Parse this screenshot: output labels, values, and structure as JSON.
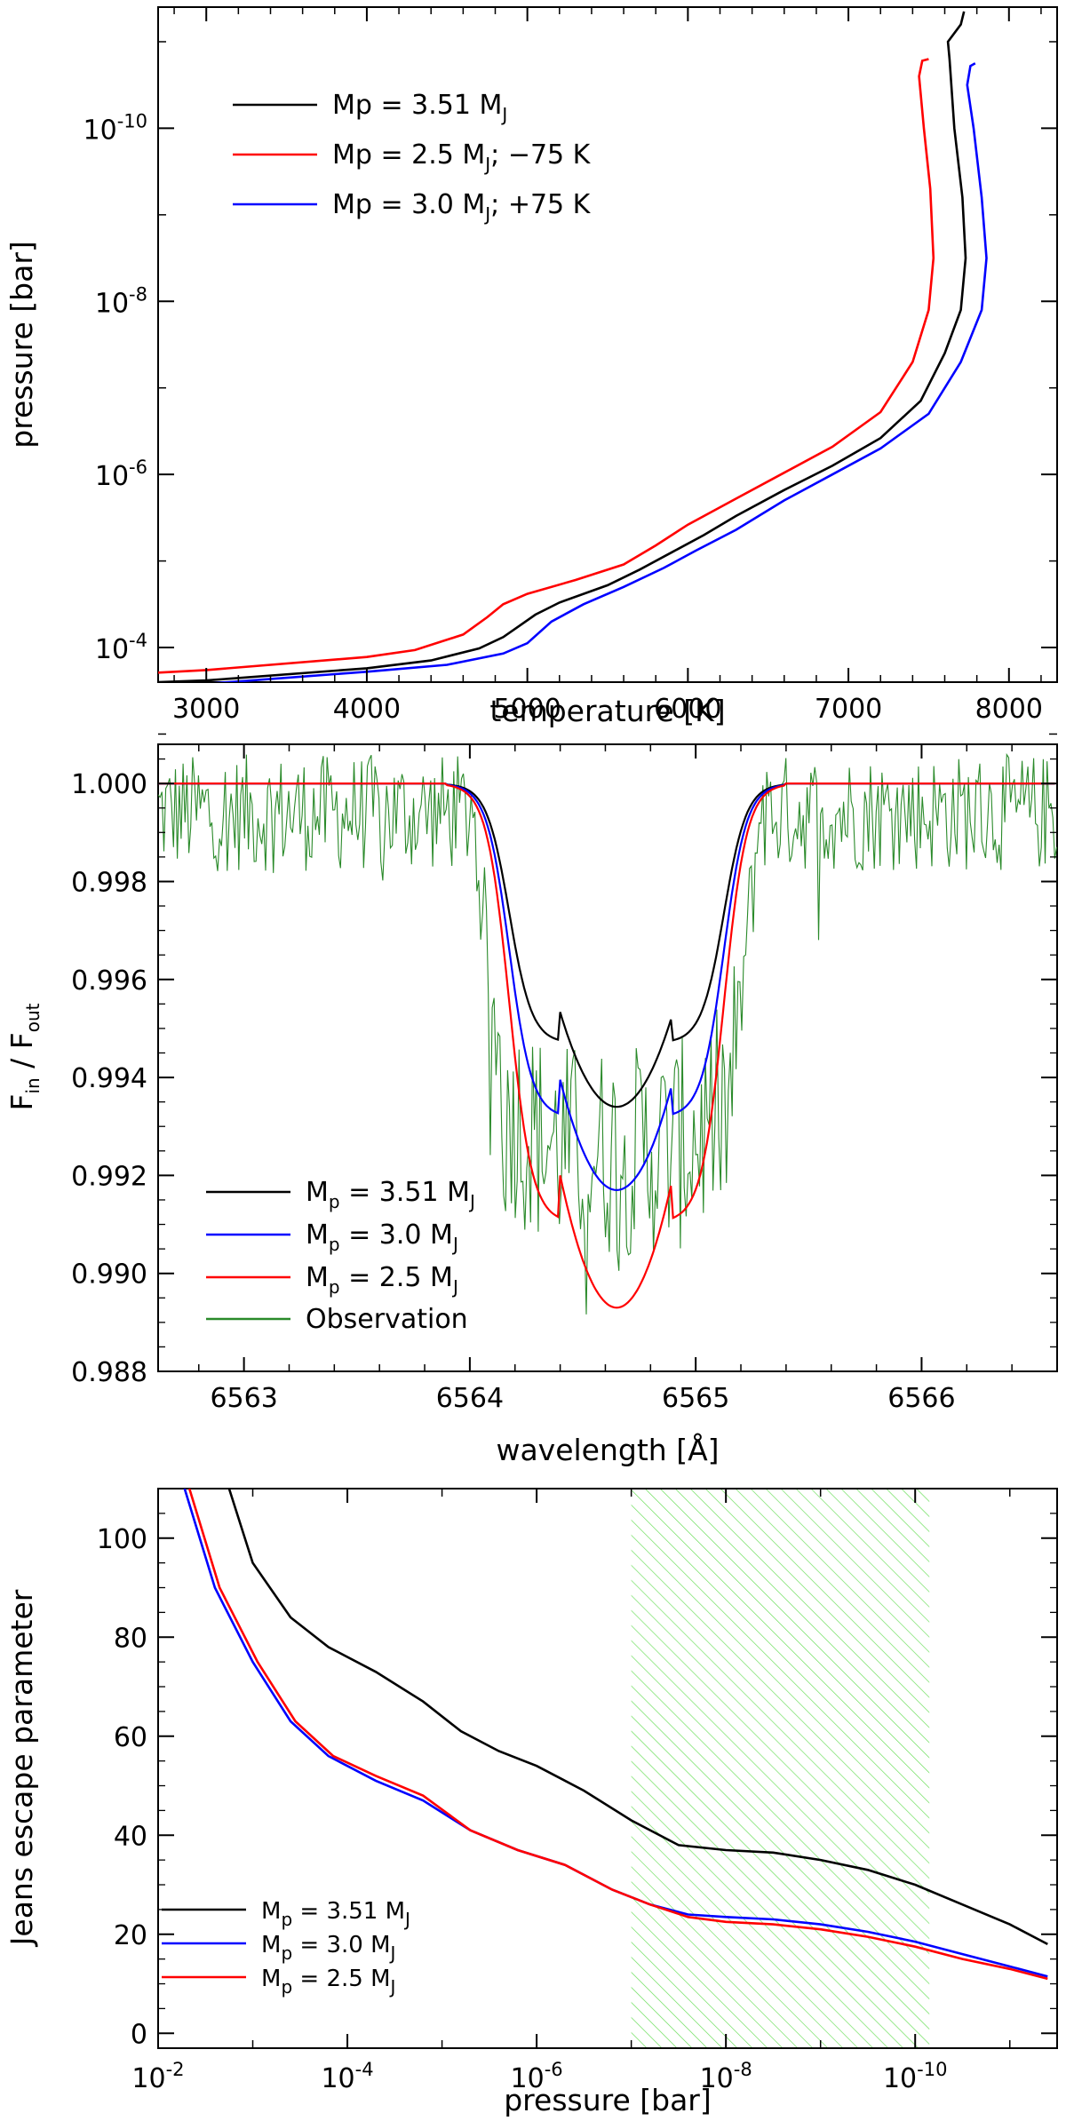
{
  "chart_data": [
    {
      "type": "line",
      "xlabel": "temperature [K]",
      "ylabel": "pressure [bar]",
      "xlim": [
        2700,
        8300
      ],
      "ylim_log10": [
        -3.6,
        -11.4
      ],
      "y_scale": "log",
      "y_inverted": true,
      "x_ticks": [
        3000,
        4000,
        5000,
        6000,
        7000,
        8000
      ],
      "x_tick_labels": [
        "3000",
        "4000",
        "5000",
        "6000",
        "7000",
        "8000"
      ],
      "y_ticks_log10": [
        -4,
        -6,
        -8,
        -10
      ],
      "y_tick_labels": [
        {
          "base": "10",
          "exp": "-4"
        },
        {
          "base": "10",
          "exp": "-6"
        },
        {
          "base": "10",
          "exp": "-8"
        },
        {
          "base": "10",
          "exp": "-10"
        }
      ],
      "legend_position": "top-left",
      "series": [
        {
          "label": "Mp = 3.51 M",
          "sub": "J",
          "label_suffix": "",
          "color": "#000000",
          "points": [
            [
              2700,
              -3.6
            ],
            [
              3000,
              -3.62
            ],
            [
              4000,
              -3.76
            ],
            [
              4400,
              -3.85
            ],
            [
              4700,
              -3.99
            ],
            [
              4850,
              -4.12
            ],
            [
              4950,
              -4.25
            ],
            [
              5050,
              -4.38
            ],
            [
              5200,
              -4.52
            ],
            [
              5500,
              -4.72
            ],
            [
              5700,
              -4.9
            ],
            [
              5900,
              -5.1
            ],
            [
              6100,
              -5.3
            ],
            [
              6300,
              -5.52
            ],
            [
              6600,
              -5.82
            ],
            [
              6900,
              -6.1
            ],
            [
              7200,
              -6.42
            ],
            [
              7450,
              -6.85
            ],
            [
              7600,
              -7.4
            ],
            [
              7700,
              -7.9
            ],
            [
              7730,
              -8.5
            ],
            [
              7710,
              -9.2
            ],
            [
              7660,
              -10.0
            ],
            [
              7630,
              -10.8
            ],
            [
              7620,
              -11.0
            ],
            [
              7700,
              -11.2
            ],
            [
              7720,
              -11.35
            ]
          ]
        },
        {
          "label": "Mp = 2.5 M",
          "sub": "J",
          "label_suffix": "; −75 K",
          "color": "#ff0000",
          "points": [
            [
              2700,
              -3.71
            ],
            [
              3000,
              -3.74
            ],
            [
              4000,
              -3.89
            ],
            [
              4300,
              -3.97
            ],
            [
              4600,
              -4.15
            ],
            [
              4750,
              -4.35
            ],
            [
              4850,
              -4.5
            ],
            [
              5000,
              -4.62
            ],
            [
              5300,
              -4.78
            ],
            [
              5600,
              -4.96
            ],
            [
              5800,
              -5.18
            ],
            [
              6000,
              -5.42
            ],
            [
              6300,
              -5.72
            ],
            [
              6600,
              -6.02
            ],
            [
              6900,
              -6.32
            ],
            [
              7200,
              -6.72
            ],
            [
              7400,
              -7.3
            ],
            [
              7500,
              -7.9
            ],
            [
              7530,
              -8.5
            ],
            [
              7510,
              -9.3
            ],
            [
              7470,
              -10.0
            ],
            [
              7440,
              -10.6
            ],
            [
              7460,
              -10.78
            ],
            [
              7500,
              -10.8
            ]
          ]
        },
        {
          "label": "Mp = 3.0 M",
          "sub": "J",
          "label_suffix": "; +75 K",
          "color": "#0000ff",
          "points": [
            [
              2700,
              -3.56
            ],
            [
              3000,
              -3.58
            ],
            [
              4000,
              -3.72
            ],
            [
              4500,
              -3.8
            ],
            [
              4850,
              -3.93
            ],
            [
              5000,
              -4.05
            ],
            [
              5150,
              -4.3
            ],
            [
              5350,
              -4.5
            ],
            [
              5600,
              -4.7
            ],
            [
              5850,
              -4.92
            ],
            [
              6050,
              -5.12
            ],
            [
              6300,
              -5.36
            ],
            [
              6600,
              -5.7
            ],
            [
              6900,
              -6.0
            ],
            [
              7200,
              -6.3
            ],
            [
              7500,
              -6.7
            ],
            [
              7700,
              -7.3
            ],
            [
              7830,
              -7.9
            ],
            [
              7860,
              -8.5
            ],
            [
              7830,
              -9.2
            ],
            [
              7780,
              -10.0
            ],
            [
              7740,
              -10.5
            ],
            [
              7760,
              -10.72
            ],
            [
              7790,
              -10.75
            ]
          ]
        }
      ]
    },
    {
      "type": "line",
      "xlabel": "wavelength [Å]",
      "ylabel_main_1": "F",
      "ylabel_sub_1": "in",
      "ylabel_mid": " / F",
      "ylabel_sub_2": "out",
      "xlim": [
        6562.62,
        6566.6
      ],
      "ylim": [
        0.988,
        1.0008
      ],
      "x_ticks": [
        6563,
        6564,
        6565,
        6566
      ],
      "x_tick_labels": [
        "6563",
        "6564",
        "6565",
        "6566"
      ],
      "y_ticks": [
        0.988,
        0.99,
        0.992,
        0.994,
        0.996,
        0.998,
        1.0
      ],
      "y_tick_labels": [
        "0.988",
        "0.990",
        "0.992",
        "0.994",
        "0.996",
        "0.998",
        "1.000"
      ],
      "legend_position": "bottom-left",
      "series": [
        {
          "label": "M",
          "sub": "p",
          "label_suffix": " = 3.51 M",
          "sub2": "J",
          "color": "#000000",
          "depth": 0.9934
        },
        {
          "label": "M",
          "sub": "p",
          "label_suffix": " = 3.0 M",
          "sub2": "J",
          "color": "#0000ff",
          "depth": 0.9917
        },
        {
          "label": "M",
          "sub": "p",
          "label_suffix": " = 2.5 M",
          "sub2": "J",
          "color": "#ff0000",
          "depth": 0.9893
        },
        {
          "label": "Observation",
          "sub": "",
          "label_suffix": "",
          "sub2": "",
          "color": "#2a8a2a",
          "depth": null
        }
      ],
      "line_center": 6564.65,
      "line_half_width": 0.53
    },
    {
      "type": "line",
      "xlabel": "pressure [bar]",
      "ylabel": "Jeans escape parameter",
      "x_scale": "log",
      "x_inverted": true,
      "xlim_log10": [
        -2,
        -11.5
      ],
      "ylim": [
        -3,
        110
      ],
      "x_ticks_log10": [
        -2,
        -4,
        -6,
        -8,
        -10
      ],
      "x_tick_labels": [
        {
          "base": "10",
          "exp": "-2"
        },
        {
          "base": "10",
          "exp": "-4"
        },
        {
          "base": "10",
          "exp": "-6"
        },
        {
          "base": "10",
          "exp": "-8"
        },
        {
          "base": "10",
          "exp": "-10"
        }
      ],
      "y_ticks": [
        0,
        20,
        40,
        60,
        80,
        100
      ],
      "y_tick_labels": [
        "0",
        "20",
        "40",
        "60",
        "80",
        "100"
      ],
      "shaded_region_log10": [
        -7.0,
        -10.15
      ],
      "shaded_color": "#66dd55",
      "legend_position": "bottom-left",
      "series": [
        {
          "label": "M",
          "sub": "p",
          "label_suffix": " = 3.51 M",
          "sub2": "J",
          "color": "#000000",
          "points": [
            [
              -2.75,
              110
            ],
            [
              -3.0,
              95
            ],
            [
              -3.4,
              84
            ],
            [
              -3.8,
              78
            ],
            [
              -4.3,
              73
            ],
            [
              -4.8,
              67
            ],
            [
              -5.2,
              61
            ],
            [
              -5.6,
              57
            ],
            [
              -6.0,
              54
            ],
            [
              -6.5,
              49
            ],
            [
              -7.0,
              43
            ],
            [
              -7.5,
              38
            ],
            [
              -8.0,
              37
            ],
            [
              -8.5,
              36.5
            ],
            [
              -9.0,
              35
            ],
            [
              -9.5,
              33
            ],
            [
              -10.0,
              30
            ],
            [
              -10.5,
              26
            ],
            [
              -11.0,
              22
            ],
            [
              -11.4,
              18
            ]
          ]
        },
        {
          "label": "M",
          "sub": "p",
          "label_suffix": " = 3.0 M",
          "sub2": "J",
          "color": "#0000ff",
          "points": [
            [
              -2.28,
              110
            ],
            [
              -2.6,
              90
            ],
            [
              -3.0,
              75
            ],
            [
              -3.4,
              63
            ],
            [
              -3.8,
              56
            ],
            [
              -4.3,
              51
            ],
            [
              -4.8,
              47
            ],
            [
              -5.3,
              41
            ],
            [
              -5.8,
              37
            ],
            [
              -6.3,
              34
            ],
            [
              -6.8,
              29
            ],
            [
              -7.2,
              26
            ],
            [
              -7.6,
              24
            ],
            [
              -8.0,
              23.5
            ],
            [
              -8.5,
              23
            ],
            [
              -9.0,
              22
            ],
            [
              -9.5,
              20.5
            ],
            [
              -10.0,
              18.5
            ],
            [
              -10.5,
              16
            ],
            [
              -11.0,
              13.5
            ],
            [
              -11.4,
              11.5
            ]
          ]
        },
        {
          "label": "M",
          "sub": "p",
          "label_suffix": " = 2.5 M",
          "sub2": "J",
          "color": "#ff0000",
          "points": [
            [
              -2.33,
              110
            ],
            [
              -2.65,
              90
            ],
            [
              -3.05,
              75
            ],
            [
              -3.45,
              63
            ],
            [
              -3.85,
              56
            ],
            [
              -4.3,
              52
            ],
            [
              -4.8,
              48
            ],
            [
              -5.3,
              41
            ],
            [
              -5.8,
              37
            ],
            [
              -6.3,
              34
            ],
            [
              -6.8,
              29
            ],
            [
              -7.2,
              26
            ],
            [
              -7.6,
              23.5
            ],
            [
              -8.0,
              22.5
            ],
            [
              -8.5,
              22
            ],
            [
              -9.0,
              21
            ],
            [
              -9.5,
              19.5
            ],
            [
              -10.0,
              17.5
            ],
            [
              -10.5,
              15
            ],
            [
              -11.0,
              13
            ],
            [
              -11.4,
              11
            ]
          ]
        }
      ]
    }
  ]
}
